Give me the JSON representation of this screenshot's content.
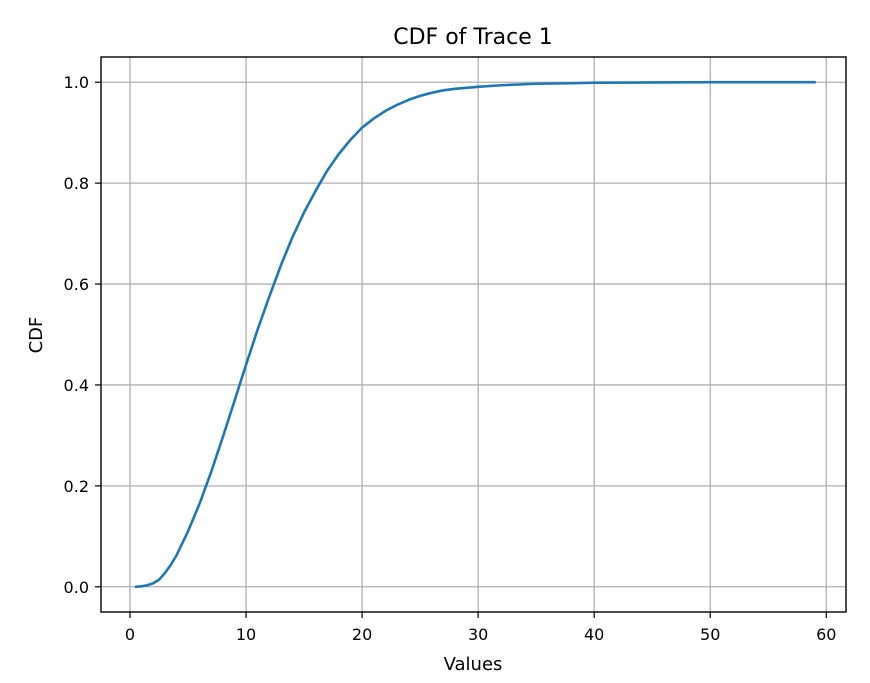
{
  "chart_data": {
    "type": "line",
    "title": "CDF of Trace 1",
    "xlabel": "Values",
    "ylabel": "CDF",
    "xlim": [
      -2.5,
      61.7
    ],
    "ylim": [
      -0.05,
      1.05
    ],
    "xticks": [
      0,
      10,
      20,
      30,
      40,
      50,
      60
    ],
    "yticks": [
      0.0,
      0.2,
      0.4,
      0.6,
      0.8,
      1.0
    ],
    "xtick_labels": [
      "0",
      "10",
      "20",
      "30",
      "40",
      "50",
      "60"
    ],
    "ytick_labels": [
      "0.0",
      "0.2",
      "0.4",
      "0.6",
      "0.8",
      "1.0"
    ],
    "grid": true,
    "series": [
      {
        "name": "Trace 1",
        "color": "#1f77b4",
        "x": [
          0.5,
          1,
          1.5,
          2,
          2.5,
          3,
          3.5,
          4,
          5,
          6,
          7,
          8,
          9,
          10,
          11,
          12,
          13,
          14,
          15,
          16,
          17,
          18,
          19,
          20,
          21,
          22,
          23,
          24,
          25,
          26,
          27,
          28,
          30,
          32,
          35,
          38,
          40,
          45,
          50,
          55,
          59
        ],
        "y": [
          0.0,
          0.001,
          0.003,
          0.007,
          0.014,
          0.027,
          0.043,
          0.062,
          0.11,
          0.165,
          0.228,
          0.297,
          0.368,
          0.44,
          0.51,
          0.575,
          0.637,
          0.693,
          0.742,
          0.785,
          0.825,
          0.858,
          0.886,
          0.91,
          0.928,
          0.943,
          0.955,
          0.965,
          0.973,
          0.979,
          0.984,
          0.987,
          0.991,
          0.994,
          0.997,
          0.998,
          0.999,
          0.9995,
          1.0,
          1.0,
          1.0
        ]
      }
    ]
  }
}
